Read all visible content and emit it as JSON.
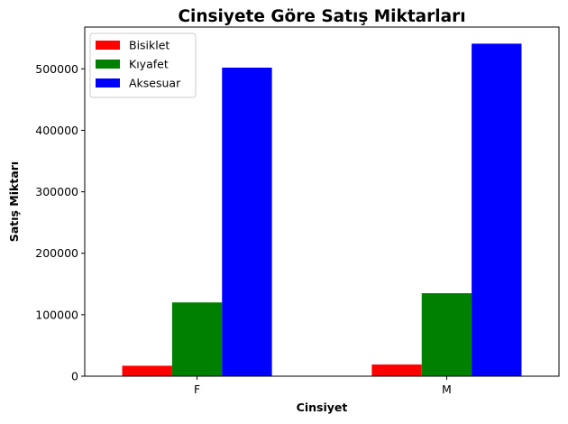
{
  "chart_data": {
    "type": "bar",
    "title": "Cinsiyete Göre Satış Miktarları",
    "xlabel": "Cinsiyet",
    "ylabel": "Satış Miktarı",
    "categories": [
      "F",
      "M"
    ],
    "series": [
      {
        "name": "Bisiklet",
        "color": "#ff0000",
        "values": [
          17000,
          19000
        ]
      },
      {
        "name": "Kıyafet",
        "color": "#008000",
        "values": [
          120000,
          135000
        ]
      },
      {
        "name": "Aksesuar",
        "color": "#0000ff",
        "values": [
          502000,
          541000
        ]
      }
    ],
    "ylim": [
      0,
      568000
    ],
    "yticks": [
      0,
      100000,
      200000,
      300000,
      400000,
      500000
    ],
    "legend_position": "upper-left",
    "grid": false
  }
}
